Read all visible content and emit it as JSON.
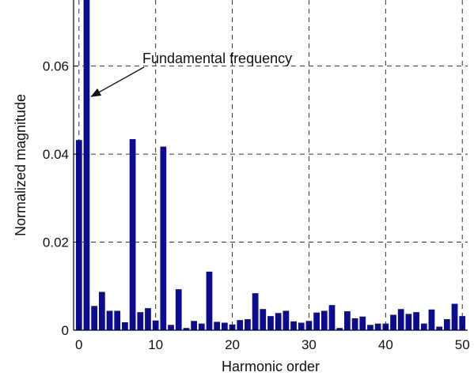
{
  "chart_data": {
    "type": "bar",
    "xlabel": "Harmonic order",
    "ylabel": "Normalized magnitude",
    "xlim": [
      -0.7,
      50.7
    ],
    "ylim": [
      0,
      0.075
    ],
    "xticks": [
      0,
      10,
      20,
      30,
      40,
      50
    ],
    "xtick_labels": [
      "0",
      "10",
      "20",
      "30",
      "40",
      "50"
    ],
    "yticks": [
      0,
      0.02,
      0.04,
      0.06
    ],
    "ytick_labels": [
      "0",
      "0.02",
      "0.04",
      "0.06"
    ],
    "grid": true,
    "bar_color": "#0d0d8c",
    "x": [
      0,
      1,
      2,
      3,
      4,
      5,
      6,
      7,
      8,
      9,
      10,
      11,
      12,
      13,
      14,
      15,
      16,
      17,
      18,
      19,
      20,
      21,
      22,
      23,
      24,
      25,
      26,
      27,
      28,
      29,
      30,
      31,
      32,
      33,
      34,
      35,
      36,
      37,
      38,
      39,
      40,
      41,
      42,
      43,
      44,
      45,
      46,
      47,
      48,
      49,
      50
    ],
    "values": [
      0.0432,
      0.075,
      0.0055,
      0.0087,
      0.0044,
      0.0044,
      0.0018,
      0.0434,
      0.0041,
      0.005,
      0.0022,
      0.0417,
      0.0012,
      0.0093,
      0.0005,
      0.0021,
      0.0015,
      0.0133,
      0.0019,
      0.0017,
      0.0013,
      0.0023,
      0.0025,
      0.0084,
      0.0048,
      0.0032,
      0.0039,
      0.0044,
      0.002,
      0.0017,
      0.0021,
      0.004,
      0.0044,
      0.0057,
      0.0005,
      0.0043,
      0.0027,
      0.0031,
      0.0012,
      0.0015,
      0.0015,
      0.0035,
      0.0048,
      0.0037,
      0.0041,
      0.0015,
      0.0047,
      0.0008,
      0.0025,
      0.006,
      0.0032
    ],
    "annotation": {
      "text": "Fundamental frequency",
      "target_x": 1,
      "target_y": 0.0538
    }
  }
}
